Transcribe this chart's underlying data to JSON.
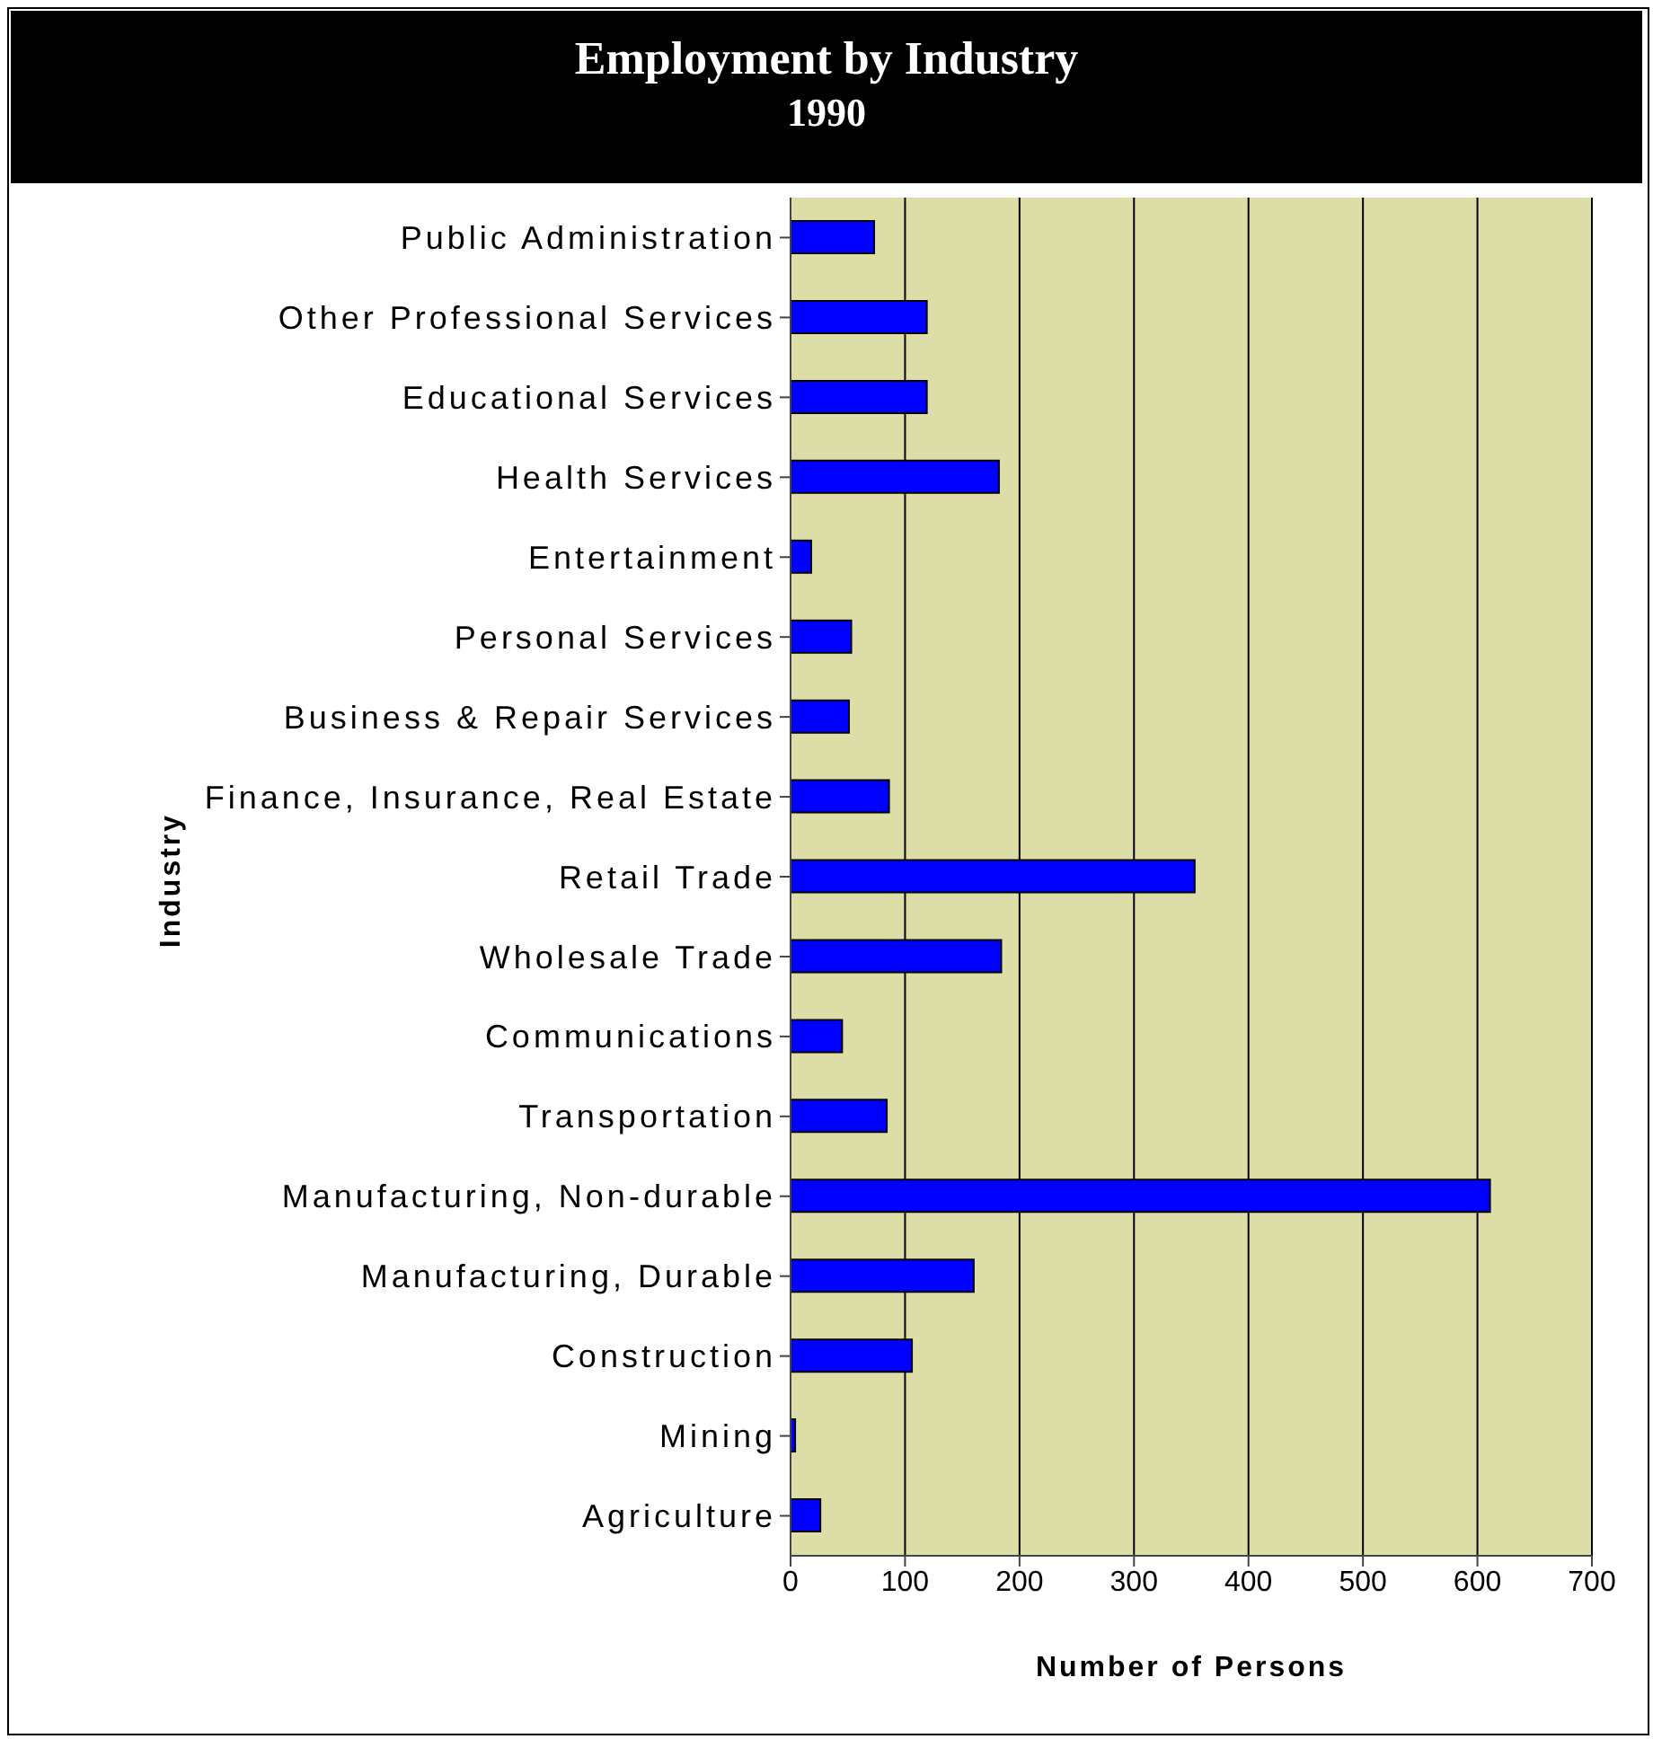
{
  "chart_data": {
    "type": "bar",
    "orientation": "horizontal",
    "title": "Employment by Industry",
    "subtitle": "1990",
    "xlabel": "Number of Persons",
    "ylabel": "Industry",
    "categories": [
      "Public Administration",
      "Other Professional Services",
      "Educational Services",
      "Health Services",
      "Entertainment",
      "Personal Services",
      "Business & Repair Services",
      "Finance, Insurance, Real Estate",
      "Retail Trade",
      "Wholesale Trade",
      "Communications",
      "Transportation",
      "Manufacturing, Non-durable",
      "Manufacturing, Durable",
      "Construction",
      "Mining",
      "Agriculture"
    ],
    "values": [
      73,
      119,
      119,
      182,
      18,
      53,
      51,
      86,
      353,
      184,
      45,
      84,
      611,
      160,
      106,
      4,
      26
    ],
    "color": "#0000ff",
    "xlim": [
      0,
      700
    ],
    "xticks": [
      0,
      100,
      200,
      300,
      400,
      500,
      600,
      700
    ],
    "grid": "x"
  }
}
